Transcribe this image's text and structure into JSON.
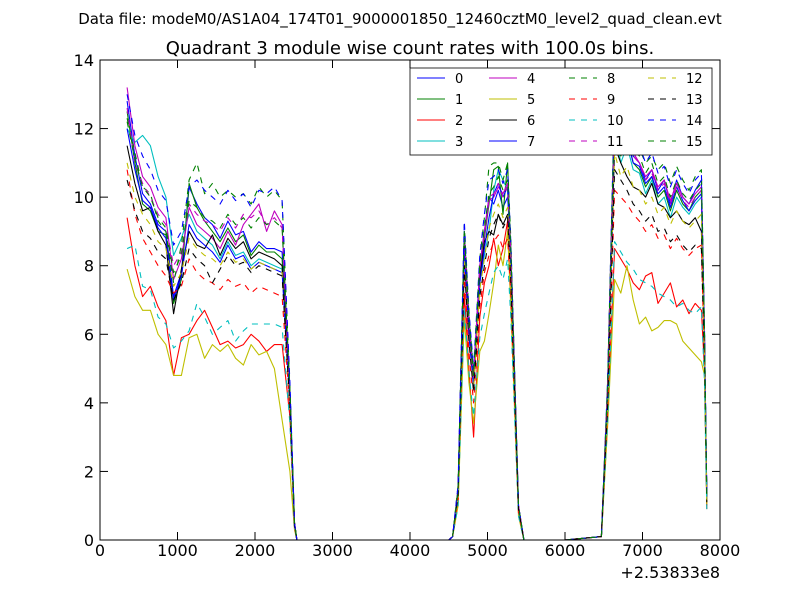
{
  "figure": {
    "suptitle": "Data file: modeM0/AS1A04_174T01_9000001850_12460cztM0_level2_quad_clean.evt"
  },
  "chart_data": {
    "type": "line",
    "title": "Quadrant 3 module wise count rates with 100.0s bins.",
    "xlabel": "",
    "ylabel": "",
    "xlim": [
      0,
      8000
    ],
    "ylim": [
      0,
      14
    ],
    "x_offset_label": "+2.53833e8",
    "xticks": [
      0,
      1000,
      2000,
      3000,
      4000,
      5000,
      6000,
      7000,
      8000
    ],
    "xtick_labels": [
      "0",
      "1000",
      "2000",
      "3000",
      "4000",
      "5000",
      "6000",
      "7000",
      "8000"
    ],
    "yticks": [
      0,
      2,
      4,
      6,
      8,
      10,
      12,
      14
    ],
    "ytick_labels": [
      "0",
      "2",
      "4",
      "6",
      "8",
      "10",
      "12",
      "14"
    ],
    "legend_position": "top-right",
    "legend_columns": 4,
    "x": [
      350,
      450,
      550,
      650,
      750,
      850,
      950,
      1050,
      1150,
      1250,
      1350,
      1450,
      1550,
      1650,
      1750,
      1850,
      1950,
      2050,
      2150,
      2250,
      2350,
      2450,
      2510,
      2540,
      2600,
      3000,
      3500,
      4000,
      4500,
      4550,
      4620,
      4700,
      4760,
      4820,
      4900,
      4960,
      5020,
      5080,
      5140,
      5200,
      5260,
      5300,
      5400,
      5470,
      5550,
      6000,
      6470,
      6550,
      6640,
      6720,
      6800,
      6880,
      6960,
      7040,
      7120,
      7200,
      7280,
      7360,
      7440,
      7520,
      7600,
      7680,
      7760,
      7800,
      7830
    ],
    "series": [
      {
        "name": "0",
        "style": "solid",
        "color": "#0000ff",
        "values": [
          12.8,
          11.2,
          10.1,
          9.8,
          9.2,
          9.0,
          7.1,
          7.8,
          10.3,
          9.8,
          9.4,
          9.2,
          8.8,
          9.3,
          8.9,
          9.0,
          8.4,
          8.7,
          8.5,
          8.5,
          8.4,
          4.4,
          0.5,
          0,
          0,
          0,
          0,
          0,
          0,
          0.1,
          1.5,
          9.0,
          6.5,
          4.8,
          8.0,
          9.0,
          10.0,
          9.8,
          10.2,
          9.7,
          10.0,
          8.5,
          1.0,
          0,
          0,
          0,
          0.1,
          4.5,
          12.5,
          11.5,
          12.0,
          11.2,
          11.0,
          10.5,
          10.8,
          10.2,
          10.5,
          9.8,
          10.5,
          10.0,
          9.8,
          10.2,
          10.5,
          6.0,
          1.3
        ]
      },
      {
        "name": "1",
        "style": "solid",
        "color": "#008000",
        "values": [
          12.5,
          11.0,
          9.8,
          9.6,
          9.0,
          8.9,
          6.9,
          7.6,
          10.4,
          9.7,
          9.3,
          9.0,
          8.7,
          9.1,
          8.7,
          8.9,
          8.3,
          8.6,
          8.4,
          8.4,
          8.2,
          4.2,
          0.5,
          0,
          0,
          0,
          0,
          0,
          0,
          0.1,
          1.4,
          8.7,
          6.2,
          4.6,
          7.7,
          8.8,
          9.8,
          10.8,
          10.9,
          9.5,
          11.0,
          8.3,
          0.9,
          0,
          0,
          0,
          0.1,
          4.3,
          12.2,
          11.2,
          11.8,
          11.0,
          10.8,
          10.3,
          10.6,
          10.0,
          10.2,
          9.6,
          10.2,
          9.8,
          9.6,
          10.0,
          10.2,
          5.8,
          1.2
        ]
      },
      {
        "name": "2",
        "style": "solid",
        "color": "#ff0000",
        "values": [
          9.4,
          8.0,
          7.1,
          7.4,
          6.8,
          6.4,
          4.8,
          5.9,
          6.0,
          6.4,
          6.7,
          6.2,
          5.7,
          5.8,
          5.6,
          5.7,
          6.0,
          5.8,
          5.5,
          5.7,
          5.7,
          3.6,
          0.4,
          0,
          0,
          0,
          0,
          0,
          0,
          0.1,
          1.1,
          7.2,
          5.0,
          3.0,
          6.5,
          7.5,
          8.0,
          8.8,
          8.0,
          8.5,
          9.3,
          7.0,
          0.8,
          0,
          0,
          0,
          0.1,
          3.5,
          8.5,
          8.2,
          7.9,
          7.5,
          7.3,
          7.7,
          7.8,
          6.9,
          7.2,
          7.5,
          6.8,
          7.0,
          6.6,
          6.9,
          6.7,
          5.0,
          0.9
        ]
      },
      {
        "name": "3",
        "style": "solid",
        "color": "#00bfbf",
        "values": [
          12.0,
          11.6,
          11.8,
          11.5,
          10.6,
          10.0,
          8.3,
          8.8,
          9.5,
          9.0,
          8.8,
          8.6,
          8.2,
          8.7,
          8.3,
          8.4,
          8.0,
          8.2,
          8.1,
          8.0,
          7.9,
          4.1,
          0.4,
          0,
          0,
          0,
          0,
          0,
          0,
          0.1,
          1.3,
          8.3,
          6.0,
          4.4,
          7.5,
          8.3,
          9.0,
          10.2,
          10.8,
          10.5,
          10.2,
          8.0,
          0.9,
          0,
          0,
          0,
          0.1,
          4.2,
          12.0,
          11.0,
          11.5,
          10.8,
          10.7,
          10.1,
          10.5,
          9.8,
          10.0,
          9.4,
          10.0,
          9.7,
          9.5,
          9.8,
          10.0,
          5.7,
          1.2
        ]
      },
      {
        "name": "4",
        "style": "solid",
        "color": "#bf00bf",
        "values": [
          13.2,
          11.5,
          10.6,
          10.3,
          9.7,
          9.4,
          7.6,
          8.2,
          9.7,
          9.2,
          9.0,
          8.8,
          8.5,
          9.0,
          8.6,
          9.2,
          9.5,
          9.8,
          9.0,
          9.6,
          9.2,
          4.3,
          0.5,
          0,
          0,
          0,
          0,
          0,
          0,
          0.1,
          1.5,
          8.9,
          6.4,
          4.7,
          7.9,
          8.9,
          9.9,
          10.0,
          10.3,
          10.1,
          10.4,
          8.4,
          1.0,
          0,
          0,
          0,
          0.1,
          4.5,
          12.6,
          11.7,
          12.0,
          11.3,
          11.0,
          10.6,
          10.8,
          10.3,
          10.5,
          9.9,
          10.4,
          10.0,
          9.8,
          10.1,
          10.3,
          5.9,
          1.3
        ]
      },
      {
        "name": "5",
        "style": "solid",
        "color": "#bfbf00",
        "values": [
          7.9,
          7.1,
          6.7,
          6.7,
          6.0,
          5.7,
          4.8,
          4.8,
          5.9,
          6.0,
          5.3,
          5.7,
          5.5,
          5.7,
          5.3,
          5.1,
          5.7,
          5.4,
          5.5,
          5.0,
          3.5,
          2.0,
          0.3,
          0,
          0,
          0,
          0,
          0,
          0,
          0.1,
          1.0,
          6.5,
          4.6,
          3.4,
          5.5,
          5.8,
          6.6,
          7.5,
          8.6,
          8.0,
          9.0,
          6.8,
          0.7,
          0,
          0,
          0,
          0.1,
          3.3,
          7.6,
          7.2,
          8.0,
          7.0,
          6.3,
          6.5,
          6.1,
          6.2,
          6.4,
          6.4,
          6.3,
          5.8,
          5.6,
          5.4,
          5.2,
          4.8,
          1.0
        ]
      },
      {
        "name": "6",
        "style": "solid",
        "color": "#000000",
        "values": [
          11.5,
          10.4,
          9.6,
          9.7,
          9.0,
          8.6,
          6.6,
          7.9,
          9.0,
          8.6,
          8.5,
          8.9,
          8.3,
          8.8,
          8.5,
          8.7,
          8.2,
          8.4,
          8.3,
          8.2,
          8.0,
          4.2,
          0.5,
          0,
          0,
          0,
          0,
          0,
          0,
          0.1,
          1.4,
          8.6,
          6.1,
          4.5,
          7.6,
          8.7,
          9.0,
          8.9,
          9.5,
          9.2,
          9.5,
          8.2,
          0.9,
          0,
          0,
          0,
          0.1,
          4.3,
          11.5,
          11.0,
          10.6,
          10.3,
          10.2,
          10.0,
          10.4,
          9.8,
          9.7,
          9.4,
          9.6,
          9.3,
          9.2,
          9.4,
          9.0,
          5.6,
          1.2
        ]
      },
      {
        "name": "7",
        "style": "solid",
        "color": "#0000ff",
        "values": [
          12.0,
          10.8,
          9.9,
          9.7,
          9.1,
          8.8,
          7.0,
          7.7,
          9.2,
          8.8,
          8.6,
          8.4,
          8.1,
          8.6,
          8.2,
          8.3,
          7.9,
          8.1,
          8.0,
          7.9,
          7.8,
          4.0,
          0.4,
          0,
          0,
          0,
          0,
          0,
          0,
          0.1,
          1.4,
          8.5,
          6.0,
          4.5,
          7.5,
          8.5,
          9.4,
          10.1,
          10.4,
          10.0,
          10.3,
          8.1,
          0.9,
          0,
          0,
          0,
          0.1,
          4.3,
          12.3,
          11.3,
          11.7,
          11.0,
          10.9,
          10.4,
          10.6,
          10.1,
          10.3,
          9.7,
          10.3,
          9.9,
          9.6,
          9.9,
          10.1,
          5.8,
          1.2
        ]
      },
      {
        "name": "8",
        "style": "dashed",
        "color": "#008000",
        "values": [
          12.3,
          11.3,
          10.3,
          10.1,
          9.3,
          9.0,
          7.5,
          8.6,
          10.5,
          11.0,
          10.1,
          10.4,
          10.0,
          10.2,
          10.0,
          10.1,
          9.8,
          10.3,
          10.0,
          10.2,
          9.9,
          4.5,
          0.5,
          0,
          0,
          0,
          0,
          0,
          0,
          0.1,
          1.6,
          9.2,
          6.6,
          4.9,
          8.2,
          9.4,
          10.9,
          11.0,
          11.0,
          10.5,
          11.0,
          8.8,
          1.0,
          0,
          0,
          0,
          0.1,
          4.6,
          12.9,
          12.0,
          12.3,
          11.6,
          11.4,
          11.0,
          11.2,
          10.8,
          11.0,
          10.4,
          10.9,
          10.5,
          10.2,
          10.6,
          10.8,
          6.1,
          1.3
        ]
      },
      {
        "name": "9",
        "style": "dashed",
        "color": "#ff0000",
        "values": [
          10.8,
          9.5,
          8.8,
          8.4,
          8.0,
          7.7,
          7.2,
          7.4,
          8.2,
          7.8,
          7.6,
          7.5,
          7.3,
          7.6,
          7.4,
          7.5,
          7.2,
          7.4,
          7.3,
          7.2,
          7.1,
          3.8,
          0.4,
          0,
          0,
          0,
          0,
          0,
          0,
          0.1,
          1.2,
          7.8,
          5.5,
          4.0,
          6.8,
          7.8,
          8.3,
          8.7,
          8.9,
          8.5,
          8.8,
          7.2,
          0.8,
          0,
          0,
          0,
          0.1,
          3.8,
          10.2,
          10.0,
          9.8,
          9.5,
          9.3,
          9.0,
          9.2,
          8.8,
          8.9,
          8.5,
          8.8,
          8.5,
          8.3,
          8.5,
          8.6,
          5.0,
          1.0
        ]
      },
      {
        "name": "10",
        "style": "dashed",
        "color": "#00bfbf",
        "values": [
          8.5,
          8.6,
          7.4,
          7.3,
          6.5,
          6.3,
          5.6,
          5.8,
          6.1,
          6.9,
          6.5,
          6.0,
          6.2,
          6.4,
          5.8,
          6.1,
          6.3,
          6.3,
          6.3,
          6.3,
          6.2,
          3.4,
          0.4,
          0,
          0,
          0,
          0,
          0,
          0,
          0.1,
          1.0,
          6.8,
          4.9,
          3.6,
          5.9,
          6.6,
          7.2,
          7.8,
          8.0,
          7.6,
          8.2,
          6.5,
          0.7,
          0,
          0,
          0,
          0.1,
          3.4,
          8.7,
          8.4,
          8.1,
          7.9,
          7.6,
          7.5,
          7.4,
          7.2,
          7.1,
          7.0,
          6.8,
          6.9,
          6.7,
          6.6,
          6.8,
          4.6,
          0.9
        ]
      },
      {
        "name": "11",
        "style": "dashed",
        "color": "#bf00bf",
        "values": [
          12.6,
          11.0,
          10.4,
          10.0,
          9.5,
          9.2,
          8.0,
          8.4,
          9.8,
          9.5,
          9.3,
          9.2,
          9.0,
          9.4,
          9.1,
          9.5,
          9.4,
          9.6,
          9.2,
          9.4,
          9.1,
          4.3,
          0.5,
          0,
          0,
          0,
          0,
          0,
          0,
          0.1,
          1.5,
          8.9,
          6.4,
          4.7,
          8.0,
          9.0,
          10.0,
          10.1,
          10.4,
          10.0,
          10.3,
          8.4,
          1.0,
          0,
          0,
          0,
          0.1,
          4.4,
          12.4,
          11.6,
          11.9,
          11.2,
          11.0,
          10.5,
          10.7,
          10.2,
          10.4,
          9.8,
          10.3,
          9.9,
          9.7,
          10.0,
          10.2,
          5.9,
          1.3
        ]
      },
      {
        "name": "12",
        "style": "dashed",
        "color": "#bfbf00",
        "values": [
          11.0,
          10.0,
          9.5,
          9.2,
          8.7,
          8.5,
          7.4,
          7.8,
          8.8,
          8.5,
          8.3,
          8.2,
          8.0,
          8.4,
          8.1,
          8.2,
          7.9,
          8.1,
          8.0,
          7.9,
          7.8,
          3.9,
          0.4,
          0,
          0,
          0,
          0,
          0,
          0,
          0.1,
          1.3,
          8.2,
          5.9,
          4.4,
          7.3,
          8.2,
          9.1,
          9.5,
          9.8,
          9.4,
          9.7,
          7.8,
          0.9,
          0,
          0,
          0,
          0.1,
          4.0,
          11.3,
          10.6,
          10.9,
          10.3,
          10.2,
          9.8,
          10.0,
          9.5,
          9.7,
          9.2,
          9.6,
          9.3,
          9.1,
          9.3,
          9.5,
          5.4,
          1.1
        ]
      },
      {
        "name": "13",
        "style": "dashed",
        "color": "#000000",
        "values": [
          10.5,
          9.6,
          9.0,
          8.8,
          8.4,
          8.2,
          7.0,
          7.5,
          8.5,
          8.2,
          8.0,
          7.5,
          7.9,
          8.3,
          8.0,
          8.1,
          7.8,
          8.0,
          7.9,
          7.8,
          7.7,
          3.9,
          0.4,
          0,
          0,
          0,
          0,
          0,
          0,
          0.1,
          1.3,
          8.0,
          5.8,
          4.3,
          7.1,
          8.0,
          8.8,
          9.2,
          9.5,
          9.1,
          9.4,
          7.6,
          0.9,
          0,
          0,
          0,
          0.1,
          3.9,
          10.8,
          10.5,
          10.2,
          9.8,
          9.6,
          9.3,
          9.5,
          9.0,
          9.1,
          8.7,
          8.9,
          8.6,
          8.4,
          8.6,
          8.5,
          5.2,
          1.1
        ]
      },
      {
        "name": "14",
        "style": "dashed",
        "color": "#0000ff",
        "values": [
          13.0,
          11.8,
          11.2,
          10.8,
          10.2,
          9.9,
          8.6,
          9.0,
          10.3,
          10.5,
          10.2,
          10.0,
          9.8,
          10.2,
          9.9,
          10.1,
          9.7,
          10.2,
          10.1,
          10.3,
          9.9,
          4.6,
          0.5,
          0,
          0,
          0,
          0,
          0,
          0,
          0.1,
          1.6,
          9.3,
          6.7,
          5.0,
          8.3,
          9.5,
          10.5,
          10.6,
          10.8,
          10.4,
          10.8,
          8.7,
          1.0,
          0,
          0,
          0,
          0.1,
          4.6,
          13.0,
          12.1,
          12.4,
          11.7,
          11.5,
          11.0,
          11.3,
          10.7,
          10.9,
          10.3,
          10.8,
          10.4,
          10.1,
          10.5,
          10.7,
          6.1,
          1.4
        ]
      },
      {
        "name": "15",
        "style": "dashed",
        "color": "#008000",
        "values": [
          12.2,
          11.1,
          10.3,
          10.0,
          9.4,
          9.1,
          7.8,
          8.3,
          9.9,
          9.7,
          9.4,
          9.3,
          9.1,
          9.5,
          9.2,
          9.4,
          9.1,
          9.4,
          9.2,
          9.3,
          9.1,
          4.4,
          0.5,
          0,
          0,
          0,
          0,
          0,
          0,
          0.1,
          1.5,
          9.0,
          6.5,
          4.8,
          8.0,
          9.1,
          10.1,
          10.3,
          10.6,
          10.2,
          10.5,
          8.5,
          1.0,
          0,
          0,
          0,
          0.1,
          4.5,
          12.7,
          11.8,
          12.1,
          11.4,
          11.2,
          10.7,
          11.0,
          10.4,
          10.6,
          10.0,
          10.5,
          10.1,
          9.9,
          10.2,
          10.4,
          6.0,
          1.3
        ]
      }
    ]
  }
}
